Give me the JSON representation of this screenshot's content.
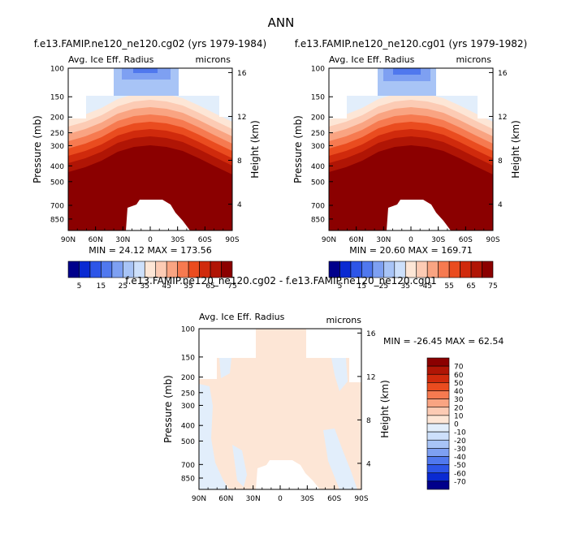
{
  "page_title": "ANN",
  "chart_data": [
    {
      "type": "heatmap",
      "title": "f.e13.FAMIP.ne120_ne120.cg02 (yrs 1979-1984)",
      "left_label": "Avg. Ice Eff. Radius",
      "units_label": "microns",
      "xlabel": "",
      "ylabel": "Pressure (mb)",
      "ylabel_right": "Height (km)",
      "x_ticks": [
        "90N",
        "60N",
        "30N",
        "0",
        "30S",
        "60S",
        "90S"
      ],
      "y_ticks": [
        "100",
        "150",
        "200",
        "250",
        "300",
        "400",
        "500",
        "700",
        "850"
      ],
      "y_right_ticks": [
        "16",
        "12",
        "8",
        "4"
      ],
      "stats_text": "MIN =  24.12   MAX = 173.56",
      "min": 24.12,
      "max": 173.56,
      "colorbar_labels": [
        "5",
        "15",
        "25",
        "35",
        "45",
        "55",
        "65",
        "75"
      ]
    },
    {
      "type": "heatmap",
      "title": "f.e13.FAMIP.ne120_ne120.cg01 (yrs 1979-1982)",
      "left_label": "Avg. Ice Eff. Radius",
      "units_label": "microns",
      "xlabel": "",
      "ylabel": "Pressure (mb)",
      "ylabel_right": "Height (km)",
      "x_ticks": [
        "90N",
        "60N",
        "30N",
        "0",
        "30S",
        "60S",
        "90S"
      ],
      "y_ticks": [
        "100",
        "150",
        "200",
        "250",
        "300",
        "400",
        "500",
        "700",
        "850"
      ],
      "y_right_ticks": [
        "16",
        "12",
        "8",
        "4"
      ],
      "stats_text": "MIN =  20.60   MAX = 169.71",
      "min": 20.6,
      "max": 169.71,
      "colorbar_labels": [
        "5",
        "15",
        "25",
        "35",
        "45",
        "55",
        "65",
        "75"
      ]
    },
    {
      "type": "heatmap",
      "title": "f.e13.FAMIP.ne120_ne120.cg02 - f.e13.FAMIP.ne120_ne120.cg01",
      "left_label": "Avg. Ice Eff. Radius",
      "units_label": "microns",
      "xlabel": "",
      "ylabel": "Pressure (mb)",
      "ylabel_right": "Height (km)",
      "x_ticks": [
        "90N",
        "60N",
        "30N",
        "0",
        "30S",
        "60S",
        "90S"
      ],
      "y_ticks": [
        "100",
        "150",
        "200",
        "250",
        "300",
        "400",
        "500",
        "700",
        "850"
      ],
      "y_right_ticks": [
        "16",
        "12",
        "8",
        "4"
      ],
      "stats_text": "MIN = -26.45   MAX =  62.54",
      "min": -26.45,
      "max": 62.54,
      "colorbar_labels": [
        "70",
        "60",
        "50",
        "40",
        "30",
        "20",
        "10",
        "0",
        "-10",
        "-20",
        "-30",
        "-40",
        "-50",
        "-60",
        "-70"
      ]
    }
  ],
  "colors": {
    "abs_scale": [
      "#00008b",
      "#0a2ad2",
      "#2d55e8",
      "#5078ee",
      "#7ea0f2",
      "#a8c4f6",
      "#cde0fb",
      "#fde6d6",
      "#fccbb4",
      "#f9a482",
      "#f67a50",
      "#ea4c1f",
      "#d02a0c",
      "#b01505",
      "#8b0000"
    ],
    "diff_scale": [
      "#8b0000",
      "#b01505",
      "#d02a0c",
      "#ea4c1f",
      "#f67a50",
      "#f9a482",
      "#fccbb4",
      "#fde6d6",
      "#e2eefb",
      "#cde0fb",
      "#a8c4f6",
      "#7ea0f2",
      "#5078ee",
      "#2d55e8",
      "#0a2ad2",
      "#00008b"
    ],
    "diff_fill": "#fde6d6",
    "diff_neg": "#e2eefb"
  }
}
